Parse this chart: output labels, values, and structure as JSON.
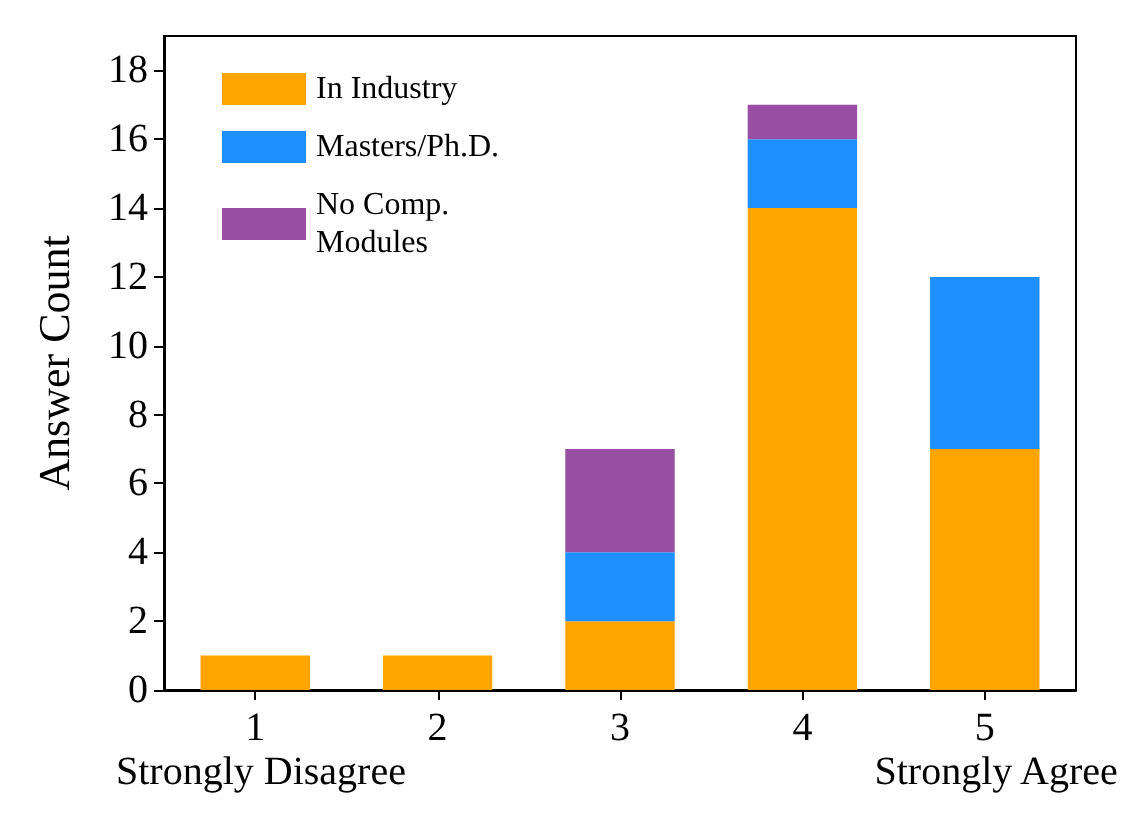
{
  "chart_data": {
    "type": "bar",
    "stacked": true,
    "ylabel": "Answer Count",
    "categories": [
      "1",
      "2",
      "3",
      "4",
      "5"
    ],
    "series": [
      {
        "name": "In Industry",
        "color": "#ffa500",
        "values": [
          1,
          1,
          2,
          14,
          7
        ]
      },
      {
        "name": "Masters/Ph.D.",
        "color": "#1e90ff",
        "values": [
          0,
          0,
          2,
          2,
          5
        ]
      },
      {
        "name": "No Comp. Modules",
        "color": "#984ea3",
        "values": [
          0,
          0,
          3,
          1,
          0
        ]
      }
    ],
    "ylim": [
      0,
      19
    ],
    "yticks": [
      0,
      2,
      4,
      6,
      8,
      10,
      12,
      14,
      16,
      18
    ],
    "grid": false,
    "legend": "top left",
    "annotations": [
      "Strongly Disagree",
      "Strongly Agree"
    ]
  }
}
